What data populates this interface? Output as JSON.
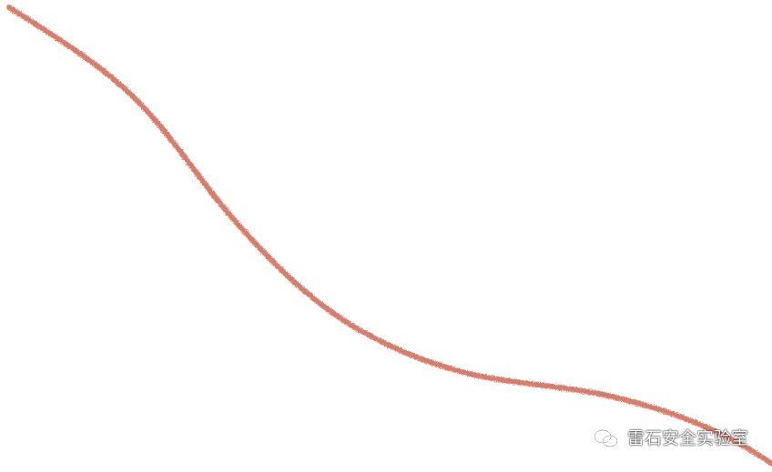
{
  "watermark": {
    "text": "雷石安全实验室",
    "icon": "wechat-icon"
  },
  "colors": {
    "background": "#ffffff",
    "stroke": "#d2705b",
    "watermark_text": "#ffffff"
  }
}
